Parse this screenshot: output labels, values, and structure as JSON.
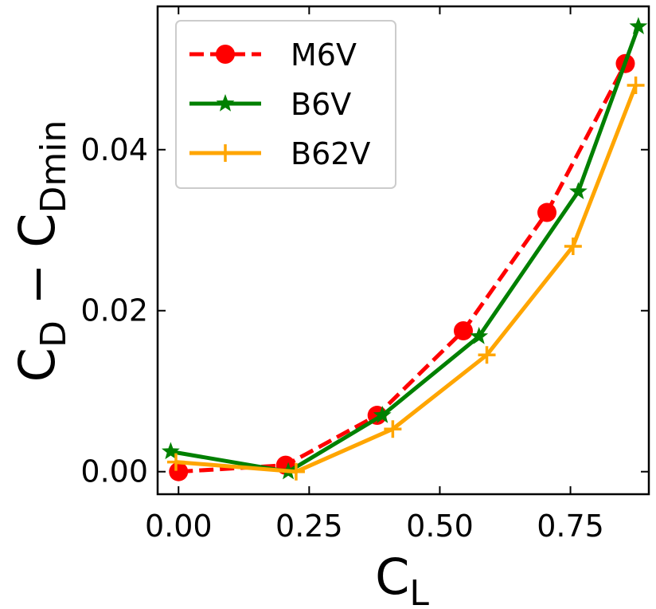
{
  "chart_data": {
    "type": "line",
    "xlabel": {
      "main": "C",
      "sub": "L"
    },
    "ylabel": {
      "main": "C",
      "sub1": "D",
      "mid": " − C",
      "sub2": "Dmin"
    },
    "xlim": [
      -0.04,
      0.9
    ],
    "ylim": [
      -0.0028,
      0.0578
    ],
    "x_ticks": [
      0.0,
      0.25,
      0.5,
      0.75
    ],
    "x_tick_labels": [
      "0.00",
      "0.25",
      "0.50",
      "0.75"
    ],
    "y_ticks": [
      0.0,
      0.02,
      0.04
    ],
    "y_tick_labels": [
      "0.00",
      "0.02",
      "0.04"
    ],
    "grid": false,
    "legend_position": "top-left",
    "series": [
      {
        "name": "M6V",
        "color": "#ff0000",
        "marker": "circle",
        "line_style": "dashed",
        "x": [
          0.0,
          0.205,
          0.38,
          0.545,
          0.705,
          0.855
        ],
        "y": [
          0.0,
          0.0008,
          0.007,
          0.0175,
          0.0322,
          0.0507
        ]
      },
      {
        "name": "B6V",
        "color": "#008000",
        "marker": "star",
        "line_style": "solid",
        "x": [
          -0.015,
          0.21,
          0.39,
          0.575,
          0.765,
          0.88
        ],
        "y": [
          0.0025,
          0.0,
          0.007,
          0.0168,
          0.0348,
          0.0553
        ]
      },
      {
        "name": "B62V",
        "color": "#ffa500",
        "marker": "plus",
        "line_style": "solid",
        "x": [
          -0.005,
          0.225,
          0.41,
          0.59,
          0.755,
          0.875
        ],
        "y": [
          0.0012,
          0.0,
          0.0053,
          0.0145,
          0.028,
          0.048
        ]
      }
    ]
  }
}
